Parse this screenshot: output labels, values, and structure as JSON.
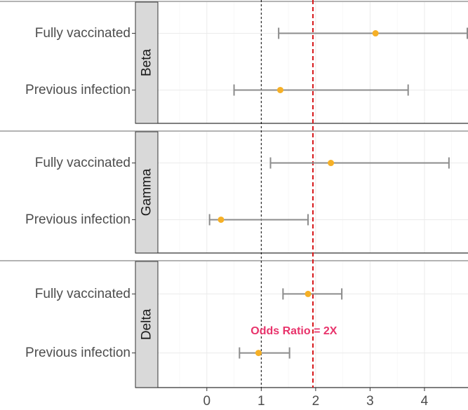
{
  "chart_data": {
    "type": "forest",
    "xlim": [
      -0.9,
      4.8
    ],
    "x_ticks": [
      0,
      1,
      2,
      3,
      4
    ],
    "x_tick_labels": [
      "0",
      "1",
      "2",
      "3",
      "4"
    ],
    "reference_lines": [
      {
        "name": "null-effect",
        "x": 1,
        "style": "dashed",
        "color": "#000000"
      },
      {
        "name": "odds-ratio-2x",
        "x": 1.95,
        "style": "dashed",
        "color": "#d7191c"
      }
    ],
    "annotation": {
      "text": "Odds Ratio = 2X",
      "x": 1.6,
      "color": "#e8336b"
    },
    "colors": {
      "point": "#f6b026",
      "whisker": "#8c8c8c",
      "strip": "#d9d9d9"
    },
    "panels": [
      {
        "name": "Beta",
        "rows": [
          {
            "label": "Fully vaccinated",
            "estimate": 3.1,
            "lower": 1.32,
            "upper": 4.8
          },
          {
            "label": "Previous infection",
            "estimate": 1.35,
            "lower": 0.5,
            "upper": 3.7
          }
        ]
      },
      {
        "name": "Gamma",
        "rows": [
          {
            "label": "Fully vaccinated",
            "estimate": 2.28,
            "lower": 1.17,
            "upper": 4.45
          },
          {
            "label": "Previous infection",
            "estimate": 0.26,
            "lower": 0.05,
            "upper": 1.86
          }
        ]
      },
      {
        "name": "Delta",
        "rows": [
          {
            "label": "Fully vaccinated",
            "estimate": 1.86,
            "lower": 1.4,
            "upper": 2.48
          },
          {
            "label": "Previous infection",
            "estimate": 0.95,
            "lower": 0.6,
            "upper": 1.52
          }
        ]
      }
    ]
  }
}
